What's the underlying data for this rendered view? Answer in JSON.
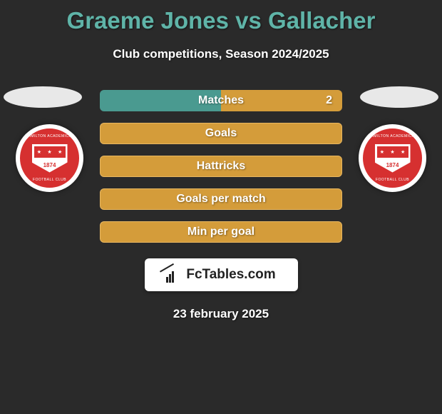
{
  "title": {
    "text": "Graeme Jones vs Gallacher",
    "color": "#5fb4a8"
  },
  "subtitle": "Club competitions, Season 2024/2025",
  "bars": [
    {
      "label": "Matches",
      "value": "2",
      "has_value": true,
      "type": "two-tone",
      "left_color": "#4a9a90",
      "right_color": "#d49c3a"
    },
    {
      "label": "Goals",
      "type": "solid",
      "color": "#d49c3a",
      "border_color": "#e8b760"
    },
    {
      "label": "Hattricks",
      "type": "solid",
      "color": "#d49c3a",
      "border_color": "#e8b760"
    },
    {
      "label": "Goals per match",
      "type": "solid",
      "color": "#d49c3a",
      "border_color": "#e8b760"
    },
    {
      "label": "Min per goal",
      "type": "solid",
      "color": "#d49c3a",
      "border_color": "#e8b760"
    }
  ],
  "crest": {
    "top_text": "HAMILTON ACADEMICAL",
    "bottom_text": "FOOTBALL CLUB",
    "year": "1874"
  },
  "logo": {
    "text": "FcTables.com"
  },
  "date": "23 february 2025",
  "background_color": "#2a2a2a"
}
